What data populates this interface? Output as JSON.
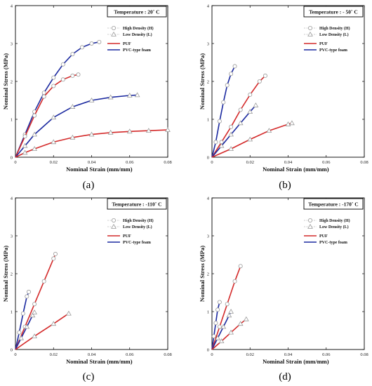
{
  "legend": {
    "markers": [
      {
        "label": "High Density (H)",
        "marker": "circle"
      },
      {
        "label": "Low Density (L)",
        "marker": "triangle"
      }
    ],
    "lines": [
      {
        "label": "PUF",
        "color": "#d42a2a"
      },
      {
        "label": "PVC-type foam",
        "color": "#1c2aa0"
      }
    ]
  },
  "colors": {
    "PUF": "#d42a2a",
    "PVC-type foam": "#1c2aa0",
    "marker": "#9a9a9a"
  },
  "chart_data": [
    {
      "type": "line",
      "caption": "(a)",
      "title": "Temperature :   20˚ C",
      "xlabel": "Nominal Strain (mm/mm)",
      "ylabel": "Nominal Stress (MPa)",
      "xlim": [
        0,
        0.08
      ],
      "ylim": [
        0,
        4
      ],
      "xticks": [
        "0",
        "0.02",
        "0.04",
        "0.06",
        "0.08"
      ],
      "yticks": [
        "0",
        "1",
        "2",
        "3",
        "4"
      ],
      "series": [
        {
          "name": "PVC-type foam",
          "density": "High Density (H)",
          "marker": "circle",
          "x": [
            0,
            0.005,
            0.01,
            0.015,
            0.02,
            0.025,
            0.03,
            0.035,
            0.04,
            0.044
          ],
          "y": [
            0,
            0.6,
            1.2,
            1.7,
            2.1,
            2.45,
            2.72,
            2.9,
            3.0,
            3.04
          ]
        },
        {
          "name": "PUF",
          "density": "High Density (H)",
          "marker": "circle",
          "x": [
            0,
            0.005,
            0.01,
            0.015,
            0.02,
            0.025,
            0.03,
            0.033
          ],
          "y": [
            0,
            0.55,
            1.1,
            1.6,
            1.88,
            2.05,
            2.15,
            2.18
          ]
        },
        {
          "name": "PVC-type foam",
          "density": "Low Density (L)",
          "marker": "triangle",
          "x": [
            0,
            0.005,
            0.01,
            0.02,
            0.03,
            0.04,
            0.05,
            0.06,
            0.064
          ],
          "y": [
            0,
            0.3,
            0.6,
            1.05,
            1.33,
            1.5,
            1.58,
            1.63,
            1.64
          ]
        },
        {
          "name": "PUF",
          "density": "Low Density (L)",
          "marker": "triangle",
          "x": [
            0,
            0.005,
            0.01,
            0.02,
            0.03,
            0.04,
            0.05,
            0.06,
            0.07,
            0.08
          ],
          "y": [
            0,
            0.12,
            0.22,
            0.4,
            0.52,
            0.6,
            0.65,
            0.68,
            0.7,
            0.72
          ]
        }
      ]
    },
    {
      "type": "line",
      "caption": "(b)",
      "title": "Temperature :  - 50˚ C",
      "xlabel": "Nominal Strain (mm/mm)",
      "ylabel": "Nominal Stress (MPa)",
      "xlim": [
        0,
        0.08
      ],
      "ylim": [
        0,
        4
      ],
      "xticks": [
        "0",
        "0.02",
        "0.04",
        "0.06",
        "0.08"
      ],
      "yticks": [
        "0",
        "1",
        "2",
        "3",
        "4"
      ],
      "series": [
        {
          "name": "PVC-type foam",
          "density": "High Density (H)",
          "marker": "circle",
          "x": [
            0,
            0.002,
            0.004,
            0.006,
            0.008,
            0.01,
            0.012
          ],
          "y": [
            0,
            0.4,
            0.95,
            1.45,
            1.9,
            2.2,
            2.4
          ]
        },
        {
          "name": "PUF",
          "density": "High Density (H)",
          "marker": "circle",
          "x": [
            0,
            0.005,
            0.01,
            0.015,
            0.02,
            0.025,
            0.028
          ],
          "y": [
            0,
            0.4,
            0.8,
            1.25,
            1.65,
            2.0,
            2.15
          ]
        },
        {
          "name": "PVC-type foam",
          "density": "Low Density (L)",
          "marker": "triangle",
          "x": [
            0,
            0.005,
            0.01,
            0.015,
            0.02,
            0.023
          ],
          "y": [
            0,
            0.3,
            0.6,
            0.9,
            1.2,
            1.37
          ]
        },
        {
          "name": "PUF",
          "density": "Low Density (L)",
          "marker": "triangle",
          "x": [
            0,
            0.01,
            0.02,
            0.03,
            0.04,
            0.042
          ],
          "y": [
            0,
            0.22,
            0.47,
            0.7,
            0.87,
            0.9
          ]
        }
      ]
    },
    {
      "type": "line",
      "caption": "(c)",
      "title": "Temperature : -110˚ C",
      "xlabel": "Nominal Strain (mm/mm)",
      "ylabel": "Nominal Stress (MPa)",
      "xlim": [
        0,
        0.08
      ],
      "ylim": [
        0,
        4
      ],
      "xticks": [
        "0",
        "0.02",
        "0.04",
        "0.06",
        "0.08"
      ],
      "yticks": [
        "0",
        "1",
        "2",
        "3",
        "4"
      ],
      "series": [
        {
          "name": "PVC-type foam",
          "density": "High Density (H)",
          "marker": "circle",
          "x": [
            0,
            0.002,
            0.004,
            0.006,
            0.007
          ],
          "y": [
            0,
            0.45,
            0.95,
            1.4,
            1.52
          ]
        },
        {
          "name": "PUF",
          "density": "High Density (H)",
          "marker": "circle",
          "x": [
            0,
            0.005,
            0.01,
            0.015,
            0.02,
            0.021
          ],
          "y": [
            0,
            0.6,
            1.2,
            1.8,
            2.4,
            2.52
          ]
        },
        {
          "name": "PVC-type foam",
          "density": "Low Density (L)",
          "marker": "triangle",
          "x": [
            0,
            0.003,
            0.006,
            0.009,
            0.01
          ],
          "y": [
            0,
            0.3,
            0.6,
            0.9,
            0.98
          ]
        },
        {
          "name": "PUF",
          "density": "Low Density (L)",
          "marker": "triangle",
          "x": [
            0,
            0.01,
            0.02,
            0.028
          ],
          "y": [
            0,
            0.35,
            0.68,
            0.95
          ]
        }
      ]
    },
    {
      "type": "line",
      "caption": "(d)",
      "title": "Temperature : -170˚ C",
      "xlabel": "Nominal Strain (mm/mm)",
      "ylabel": "Nominal Stress (MPa)",
      "xlim": [
        0,
        0.08
      ],
      "ylim": [
        0,
        4
      ],
      "xticks": [
        "0",
        "0.02",
        "0.04",
        "0.06",
        "0.08"
      ],
      "yticks": [
        "0",
        "1",
        "2",
        "3",
        "4"
      ],
      "series": [
        {
          "name": "PVC-type foam",
          "density": "High Density (H)",
          "marker": "circle",
          "x": [
            0,
            0.001,
            0.002,
            0.003,
            0.004
          ],
          "y": [
            0,
            0.35,
            0.7,
            1.05,
            1.25
          ]
        },
        {
          "name": "PUF",
          "density": "High Density (H)",
          "marker": "circle",
          "x": [
            0,
            0.004,
            0.008,
            0.012,
            0.015
          ],
          "y": [
            0,
            0.6,
            1.2,
            1.8,
            2.2
          ]
        },
        {
          "name": "PVC-type foam",
          "density": "Low Density (L)",
          "marker": "triangle",
          "x": [
            0,
            0.003,
            0.006,
            0.009,
            0.01
          ],
          "y": [
            0,
            0.3,
            0.6,
            0.9,
            1.0
          ]
        },
        {
          "name": "PUF",
          "density": "Low Density (L)",
          "marker": "triangle",
          "x": [
            0,
            0.005,
            0.01,
            0.015,
            0.018
          ],
          "y": [
            0,
            0.22,
            0.45,
            0.68,
            0.8
          ]
        }
      ]
    }
  ]
}
